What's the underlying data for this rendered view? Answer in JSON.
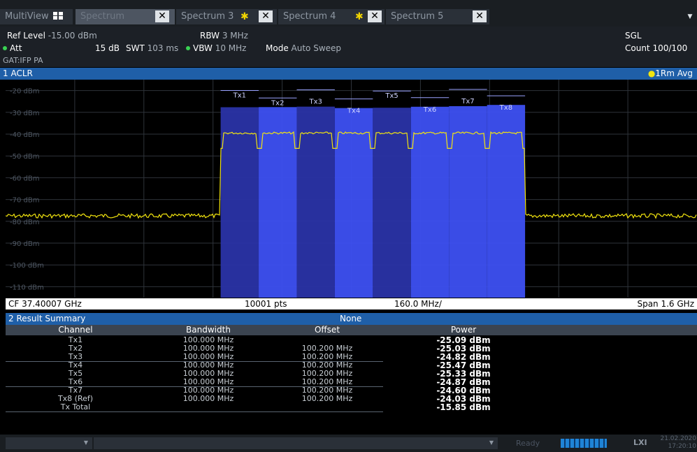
{
  "tabs": [
    {
      "label": "MultiView"
    },
    {
      "label": "Spectrum",
      "close": "✕"
    },
    {
      "label": "Spectrum 3",
      "close": "✕",
      "star": "✱"
    },
    {
      "label": "Spectrum 4",
      "close": "✕",
      "star": "✱"
    },
    {
      "label": "Spectrum 5",
      "close": "✕"
    }
  ],
  "tab_menu": "▼",
  "settings": {
    "ref_level_label": "Ref Level",
    "ref_level_value": "-15.00 dBm",
    "att_label": "Att",
    "att_value": "15 dB",
    "swt_label": "SWT",
    "swt_value": "103 ms",
    "rbw_label": "RBW",
    "rbw_value": "3 MHz",
    "vbw_label": "VBW",
    "vbw_value": "10 MHz",
    "mode_label": "Mode",
    "mode_value": "Auto Sweep",
    "gat": "GAT:IFP PA",
    "sgl": "SGL",
    "count": "Count 100/100"
  },
  "window1": {
    "title": "1 ACLR",
    "trace": "1Rm Avg"
  },
  "chart_data": {
    "type": "line",
    "title": "1 ACLR",
    "y_ticks": [
      "-20 dBm",
      "-30 dBm",
      "-40 dBm",
      "-50 dBm",
      "-60 dBm",
      "-70 dBm",
      "-80 dBm",
      "-90 dBm",
      "-100 dBm",
      "-110 dBm"
    ],
    "ylim": [
      -115,
      -15
    ],
    "x_divisions": 10,
    "grid": true,
    "channels": [
      {
        "name": "Tx1",
        "power_dBm": -25.09
      },
      {
        "name": "Tx2",
        "power_dBm": -25.03
      },
      {
        "name": "Tx3",
        "power_dBm": -24.82
      },
      {
        "name": "Tx4",
        "power_dBm": -25.47
      },
      {
        "name": "Tx5",
        "power_dBm": -25.33
      },
      {
        "name": "Tx6",
        "power_dBm": -24.87
      },
      {
        "name": "Tx7",
        "power_dBm": -24.6
      },
      {
        "name": "Tx8",
        "power_dBm": -24.03
      }
    ],
    "trace_level_in_band_dBm": -39.5,
    "trace_level_out_band_dBm": -77.5,
    "band_start_div": 4,
    "band_end_div": 9,
    "footer": {
      "cf": "CF 37.40007 GHz",
      "pts": "10001 pts",
      "div": "160.0 MHz/",
      "span": "Span 1.6 GHz"
    }
  },
  "window2": {
    "title": "2 Result Summary",
    "standard": "None"
  },
  "table": {
    "headers": [
      "Channel",
      "Bandwidth",
      "Offset",
      "Power"
    ],
    "rows": [
      [
        "Tx1",
        "100.000 MHz",
        "",
        "-25.09 dBm"
      ],
      [
        "Tx2",
        "100.000 MHz",
        "100.200 MHz",
        "-25.03 dBm"
      ],
      [
        "Tx3",
        "100.000 MHz",
        "100.200 MHz",
        "-24.82 dBm"
      ],
      [
        "Tx4",
        "100.000 MHz",
        "100.200 MHz",
        "-25.47 dBm"
      ],
      [
        "Tx5",
        "100.000 MHz",
        "100.200 MHz",
        "-25.33 dBm"
      ],
      [
        "Tx6",
        "100.000 MHz",
        "100.200 MHz",
        "-24.87 dBm"
      ],
      [
        "Tx7",
        "100.000 MHz",
        "100.200 MHz",
        "-24.60 dBm"
      ],
      [
        "Tx8 (Ref)",
        "100.000 MHz",
        "100.200 MHz",
        "-24.03 dBm"
      ],
      [
        "Tx Total",
        "",
        "",
        "-15.85 dBm"
      ]
    ]
  },
  "status": {
    "ready": "Ready",
    "date": "21.02.2020",
    "time": "17:20:10",
    "dropdown": "▼"
  },
  "colors": {
    "trace": "#f2e40e",
    "channel_light": "#3d50f2",
    "channel_dark": "#2a33a6",
    "grid": "#2e333a",
    "header": "#1f5fa8"
  }
}
